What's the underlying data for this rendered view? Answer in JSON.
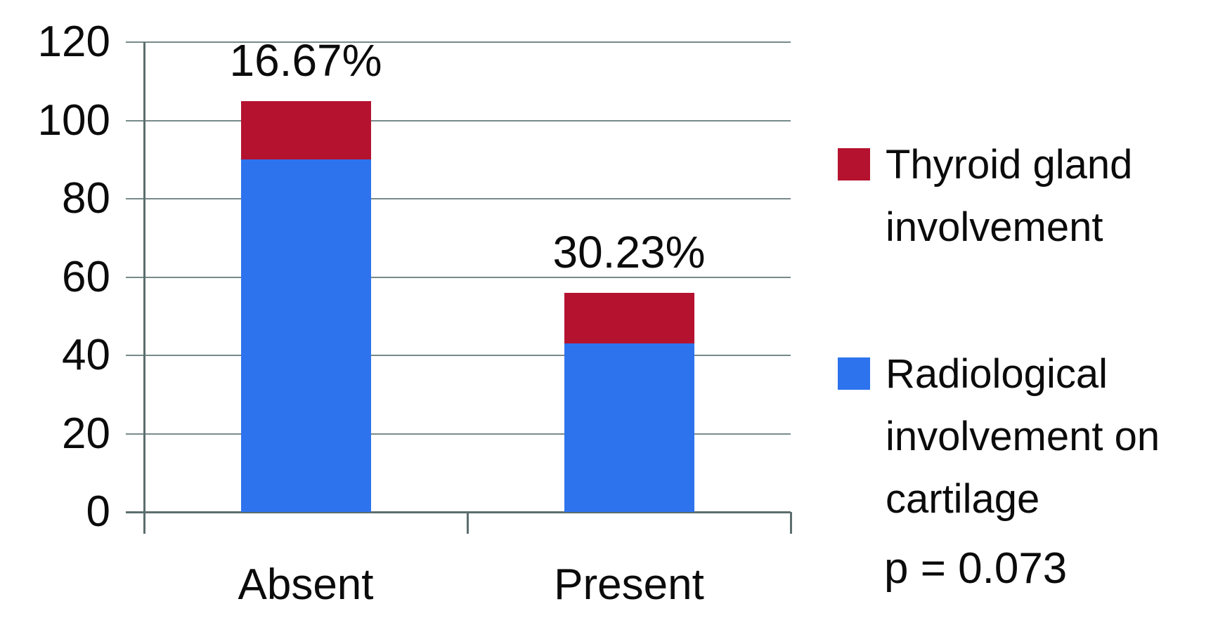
{
  "chart_data": {
    "type": "bar",
    "stacked": true,
    "title": "",
    "xlabel": "",
    "ylabel": "",
    "categories": [
      "Absent",
      "Present"
    ],
    "series": [
      {
        "name": "Radiological involvement on cartilage",
        "color": "#2e73ee",
        "values": [
          90,
          43
        ]
      },
      {
        "name": "Thyroid gland involvement",
        "color": "#b5122f",
        "values": [
          15,
          13
        ]
      }
    ],
    "stack_totals": [
      105,
      56
    ],
    "bar_labels": [
      "16.67%",
      "30.23%"
    ],
    "ylim": [
      0,
      120
    ],
    "yticks": [
      0,
      20,
      40,
      60,
      80,
      100,
      120
    ],
    "grid": true,
    "legend_position": "right",
    "annotation": "p = 0.073"
  },
  "legend": {
    "items": [
      {
        "label": "Thyroid gland involvement",
        "color": "#b5122f"
      },
      {
        "label": "Radiological involvement on cartilage",
        "color": "#2e73ee"
      }
    ]
  },
  "annotation": {
    "p_value": "p = 0.073"
  },
  "colors": {
    "gridline": "#778a8a",
    "axis": "#5c6e6e",
    "text": "#0b0b0b",
    "background": "#ffffff"
  }
}
